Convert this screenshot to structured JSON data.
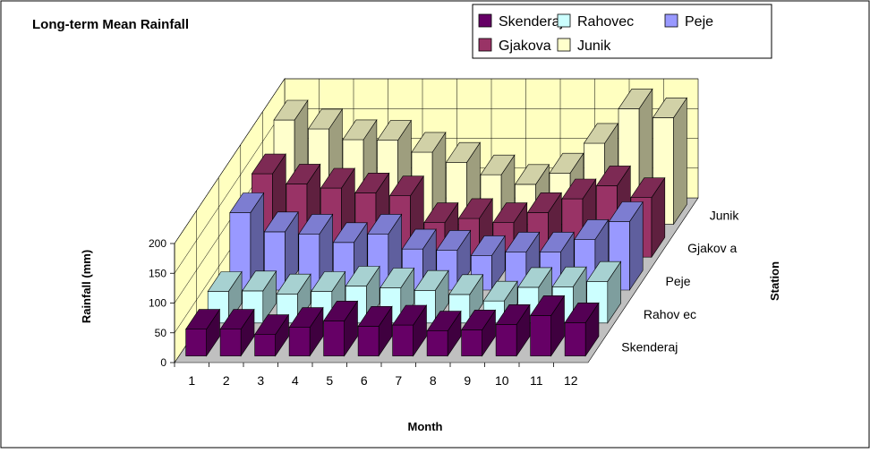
{
  "colors": {
    "Skenderaj": "#660066",
    "Rahovec": "#ccffff",
    "Peje": "#9999ff",
    "Gjakova": "#993366",
    "Junik": "#ffffcc",
    "wall": "#ffffc0",
    "floor": "#c0c0c0"
  },
  "chart_data": {
    "type": "bar",
    "subtype": "3d-clustered",
    "title": "Long-term Mean Rainfall",
    "xlabel": "Month",
    "ylabel": "Rainfall (mm)",
    "zlabel": "Station",
    "ylim": [
      0,
      200
    ],
    "yticks": [
      "0",
      "50",
      "100",
      "150",
      "200"
    ],
    "categories": [
      "1",
      "2",
      "3",
      "4",
      "5",
      "6",
      "7",
      "8",
      "9",
      "10",
      "11",
      "12"
    ],
    "depth_labels": [
      "Skenderaj",
      "Rahovec",
      "Peje",
      "Gjakova",
      "Junik"
    ],
    "depth_tick_labels": [
      "Skenderaj",
      "Rahov ec",
      "Peje",
      "Gjakov a",
      "Junik"
    ],
    "legend_position": "top-right",
    "legend_order": [
      "Skenderaj",
      "Rahovec",
      "Peje",
      "Gjakova",
      "Junik"
    ],
    "series": [
      {
        "name": "Skenderaj",
        "values": [
          45,
          45,
          36,
          48,
          59,
          50,
          52,
          42,
          44,
          53,
          68,
          56
        ]
      },
      {
        "name": "Rahovec",
        "values": [
          53,
          54,
          49,
          53,
          62,
          59,
          55,
          48,
          37,
          60,
          61,
          70
        ]
      },
      {
        "name": "Peje",
        "values": [
          130,
          98,
          94,
          80,
          94,
          69,
          67,
          58,
          64,
          64,
          85,
          115
        ]
      },
      {
        "name": "Gjakova",
        "values": [
          140,
          123,
          116,
          108,
          103,
          58,
          65,
          58,
          75,
          98,
          120,
          100
        ]
      },
      {
        "name": "Junik",
        "values": [
          175,
          160,
          142,
          141,
          121,
          104,
          83,
          67,
          86,
          136,
          194,
          179
        ]
      }
    ]
  }
}
